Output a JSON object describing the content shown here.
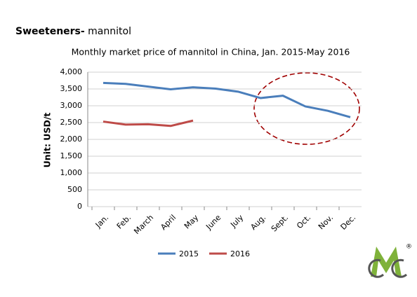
{
  "page_heading": {
    "bold": "Sweeteners-",
    "text": "mannitol"
  },
  "logo_mark": "®",
  "chart_data": {
    "type": "line",
    "title": "Monthly market price of mannitol in China, Jan. 2015-May  2016",
    "y_label": "Unit: USD/t",
    "categories": [
      "Jan.",
      "Feb.",
      "March",
      "April",
      "May",
      "June",
      "July",
      "Aug.",
      "Sept.",
      "Oct.",
      "Nov.",
      "Dec."
    ],
    "series": [
      {
        "name": "2015",
        "color": "#4a7ebb",
        "values": [
          3680,
          3650,
          3570,
          3490,
          3550,
          3510,
          3420,
          3230,
          3300,
          2980,
          2850,
          2660
        ]
      },
      {
        "name": "2016",
        "color": "#be4b48",
        "values": [
          2530,
          2440,
          2450,
          2400,
          2560,
          null,
          null,
          null,
          null,
          null,
          null,
          null
        ]
      }
    ],
    "ylim": [
      0,
      4000
    ],
    "yticks": [
      0,
      500,
      {
        "value": 1000,
        "label": "1,000"
      },
      {
        "value": 1500,
        "label": "1,500"
      },
      {
        "value": 2000,
        "label": "2,000"
      },
      {
        "value": 2500,
        "label": "2,500"
      },
      {
        "value": 3000,
        "label": "3,000"
      },
      {
        "value": 3500,
        "label": "3,500"
      },
      {
        "value": 4000,
        "label": "4,000"
      }
    ],
    "grid": true,
    "legend": "bottom"
  }
}
